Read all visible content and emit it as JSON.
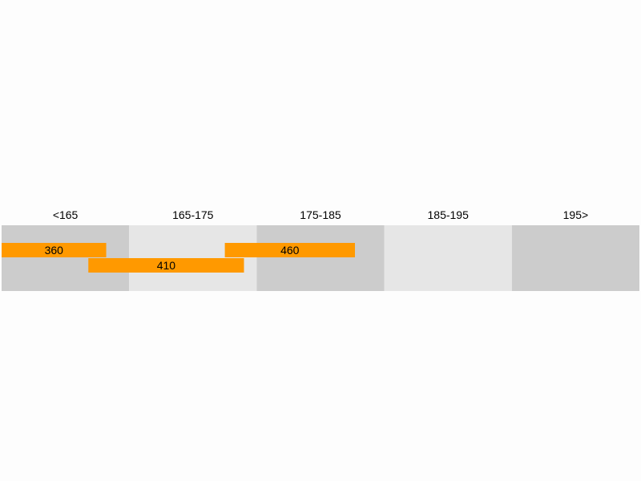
{
  "chart_data": {
    "type": "bar",
    "orientation": "horizontal-ranges",
    "title": "",
    "categories": [
      "<165",
      "165-175",
      "175-185",
      "185-195",
      "195>"
    ],
    "band_colors": [
      "#cccccc",
      "#e6e6e6"
    ],
    "bar_color": "#ff9900",
    "bars": [
      {
        "label": "360",
        "start_band": 0.0,
        "end_band": 0.82,
        "row": 0
      },
      {
        "label": "410",
        "start_band": 0.68,
        "end_band": 1.9,
        "row": 1
      },
      {
        "label": "460",
        "start_band": 1.75,
        "end_band": 2.77,
        "row": 0
      }
    ],
    "legend": "none",
    "grid": false
  }
}
